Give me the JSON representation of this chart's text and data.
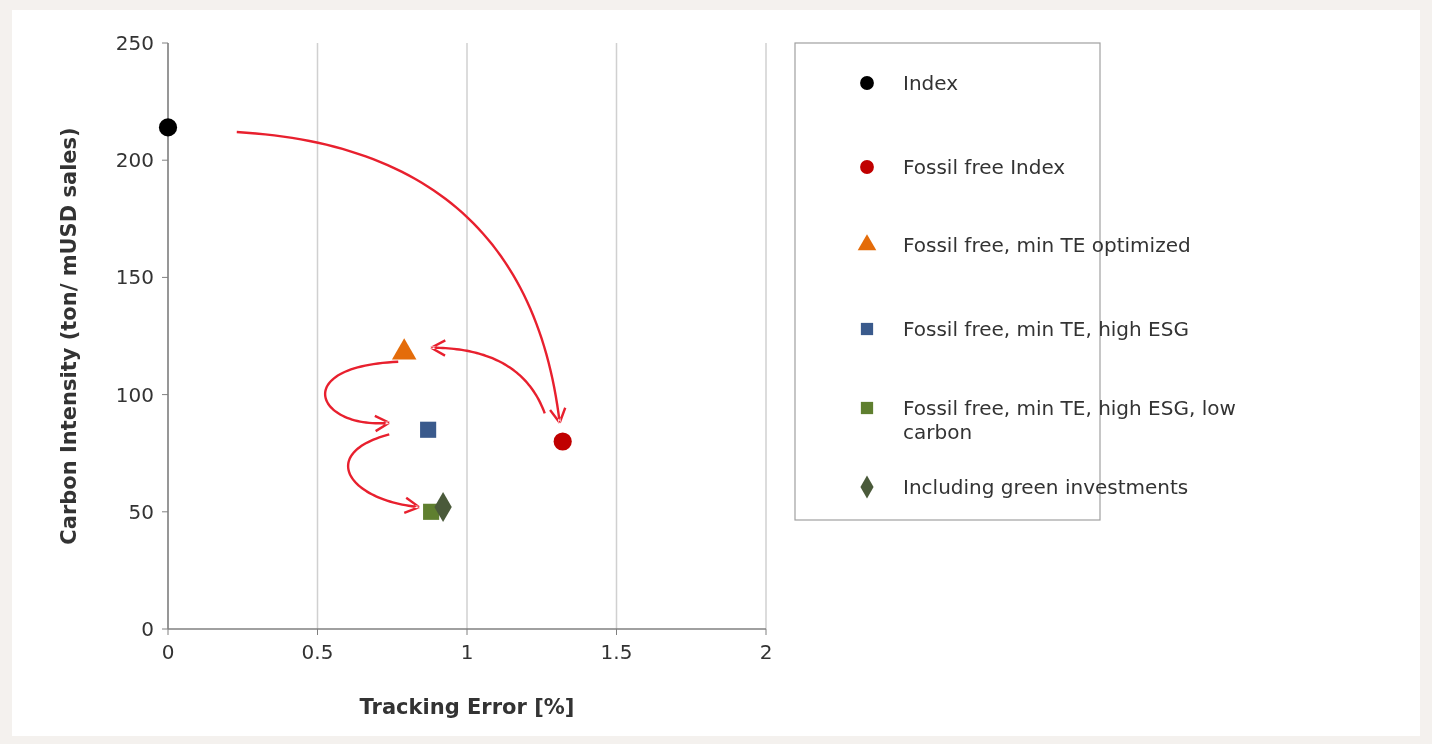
{
  "chart_data": {
    "type": "scatter",
    "xlabel": "Tracking Error [%]",
    "ylabel": "Carbon Intensity (ton/ mUSD sales)",
    "xlim": [
      0,
      2
    ],
    "xticks": [
      0,
      0.5,
      1,
      1.5,
      2
    ],
    "ylim": [
      0,
      250
    ],
    "yticks": [
      0,
      50,
      100,
      150,
      200,
      250
    ],
    "grid": "x",
    "legend": "right",
    "series": [
      {
        "name": "Index",
        "color": "#000000",
        "marker": "circle",
        "x": [
          0
        ],
        "values": [
          214
        ]
      },
      {
        "name": "Fossil free Index",
        "color": "#c00000",
        "marker": "circle",
        "x": [
          1.32
        ],
        "values": [
          80
        ]
      },
      {
        "name": "Fossil free, min TE optimized",
        "color": "#e46c0a",
        "marker": "triangle",
        "x": [
          0.79
        ],
        "values": [
          118
        ]
      },
      {
        "name": "Fossil free, min TE, high ESG",
        "color": "#3a5a8c",
        "marker": "square",
        "x": [
          0.87
        ],
        "values": [
          85
        ]
      },
      {
        "name": "Fossil free, min TE, high ESG, low carbon",
        "color": "#5f7f2f",
        "marker": "square",
        "x": [
          0.88
        ],
        "values": [
          50
        ]
      },
      {
        "name": "Including green investments",
        "color": "#4a5a3a",
        "marker": "diamond",
        "x": [
          0.92
        ],
        "values": [
          52
        ]
      }
    ]
  }
}
